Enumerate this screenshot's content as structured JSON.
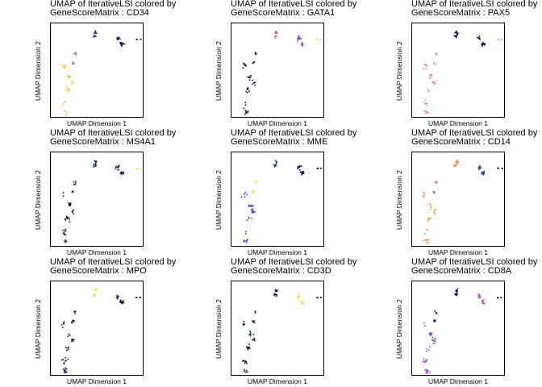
{
  "chart_data": [
    {
      "type": "scatter",
      "title": [
        "UMAP of IterativeLSI colored by",
        "GeneScoreMatrix : CD34"
      ],
      "xlabel": "UMAP Dimension 1",
      "ylabel": "UMAP Dimension 2",
      "grid": false,
      "clusters": {
        "c1": "#f3c640",
        "c2": "#e9468b",
        "c3": "#1f2fa8",
        "c4": "#0c1749",
        "c5": "#101d58"
      }
    },
    {
      "type": "scatter",
      "title": [
        "UMAP of IterativeLSI colored by",
        "GeneScoreMatrix : GATA1"
      ],
      "xlabel": "UMAP Dimension 1",
      "ylabel": "UMAP Dimension 2",
      "grid": false,
      "clusters": {
        "c1": "#0d1645",
        "c2": "#0d1645",
        "c3": "#e0519c",
        "c4": "#7f3fd6",
        "c5": "#f1e46a"
      }
    },
    {
      "type": "scatter",
      "title": [
        "UMAP of IterativeLSI colored by",
        "GeneScoreMatrix : PAX5"
      ],
      "xlabel": "UMAP Dimension 1",
      "ylabel": "UMAP Dimension 2",
      "grid": false,
      "clusters": {
        "c1": "#f27da7",
        "c2": "#f27da7",
        "c3": "#0c1749",
        "c4": "#0c1749",
        "c5": "#f48a6a"
      }
    },
    {
      "type": "scatter",
      "title": [
        "UMAP of IterativeLSI colored by",
        "GeneScoreMatrix : MS4A1"
      ],
      "xlabel": "UMAP Dimension 1",
      "ylabel": "UMAP Dimension 2",
      "grid": false,
      "clusters": {
        "c1": "#0c1749",
        "c2": "#0c1749",
        "c3": "#13287f",
        "c4": "#0c1749",
        "c5": "#f5e15a"
      }
    },
    {
      "type": "scatter",
      "title": [
        "UMAP of IterativeLSI colored by",
        "GeneScoreMatrix : MME"
      ],
      "xlabel": "UMAP Dimension 1",
      "ylabel": "UMAP Dimension 2",
      "grid": false,
      "clusters": {
        "c1": "#2b3fd6",
        "c2": "#f3e14e",
        "c3": "#1f37c4",
        "c4": "#0c1749",
        "c5": "#0c1749"
      }
    },
    {
      "type": "scatter",
      "title": [
        "UMAP of IterativeLSI colored by",
        "GeneScoreMatrix : CD14"
      ],
      "xlabel": "UMAP Dimension 1",
      "ylabel": "UMAP Dimension 2",
      "grid": false,
      "clusters": {
        "c1": "#f0a25a",
        "c2": "#e56b8e",
        "c3": "#f28a5a",
        "c4": "#203cc8",
        "c5": "#0c1749"
      }
    },
    {
      "type": "scatter",
      "title": [
        "UMAP of IterativeLSI colored by",
        "GeneScoreMatrix : MPO"
      ],
      "xlabel": "UMAP Dimension 1",
      "ylabel": "UMAP Dimension 2",
      "grid": false,
      "clusters": {
        "c1": "#0c1749",
        "c2": "#0c1749",
        "c3": "#f3dd4a",
        "c4": "#0c1749",
        "c5": "#0c1749"
      }
    },
    {
      "type": "scatter",
      "title": [
        "UMAP of IterativeLSI colored by",
        "GeneScoreMatrix : CD3D"
      ],
      "xlabel": "UMAP Dimension 1",
      "ylabel": "UMAP Dimension 2",
      "grid": false,
      "clusters": {
        "c1": "#0c1749",
        "c2": "#0c1749",
        "c3": "#0c1749",
        "c4": "#f3e04a",
        "c5": "#0c1749"
      }
    },
    {
      "type": "scatter",
      "title": [
        "UMAP of IterativeLSI colored by",
        "GeneScoreMatrix : CD8A"
      ],
      "xlabel": "UMAP Dimension 1",
      "ylabel": "UMAP Dimension 2",
      "grid": false,
      "clusters": {
        "c1": "#8a3fe0",
        "c2": "#0c1749",
        "c3": "#0c1749",
        "c4": "#c24fd2",
        "c5": "#0c1749"
      }
    }
  ]
}
